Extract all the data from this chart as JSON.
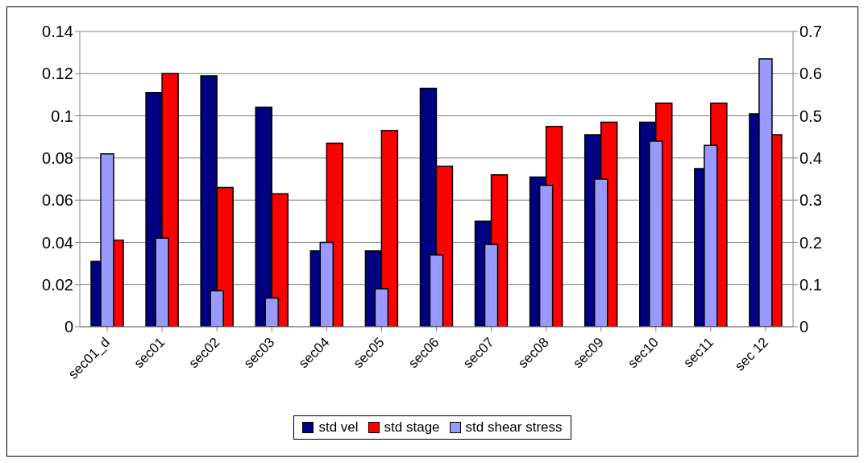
{
  "chart_data": {
    "type": "bar",
    "categories": [
      "sec01_d",
      "sec01",
      "sec02",
      "sec03",
      "sec04",
      "sec05",
      "sec06",
      "sec07",
      "sec08",
      "sec09",
      "sec10",
      "sec11",
      "sec 12"
    ],
    "series": [
      {
        "name": "std vel",
        "color": "#000080",
        "values": [
          0.031,
          0.111,
          0.119,
          0.104,
          0.036,
          0.036,
          0.113,
          0.05,
          0.071,
          0.091,
          0.097,
          0.075,
          0.101
        ]
      },
      {
        "name": "std stage",
        "color": "#ff0000",
        "values": [
          0.041,
          0.12,
          0.066,
          0.063,
          0.087,
          0.093,
          0.076,
          0.072,
          0.095,
          0.097,
          0.106,
          0.106,
          0.091
        ]
      },
      {
        "name": "std shear stress",
        "color": "#9999ff",
        "axis": "y2",
        "values": [
          0.41,
          0.21,
          0.085,
          0.068,
          0.2,
          0.09,
          0.17,
          0.195,
          0.335,
          0.35,
          0.44,
          0.43,
          0.635
        ]
      }
    ],
    "ylim": [
      0,
      0.14
    ],
    "yticks": [
      0,
      0.02,
      0.04,
      0.06,
      0.08,
      0.1,
      0.12,
      0.14
    ],
    "y2lim": [
      0,
      0.7
    ],
    "y2ticks": [
      0,
      0.1,
      0.2,
      0.3,
      0.4,
      0.5,
      0.6,
      0.7
    ],
    "grid": "y",
    "legend": "bottom"
  }
}
